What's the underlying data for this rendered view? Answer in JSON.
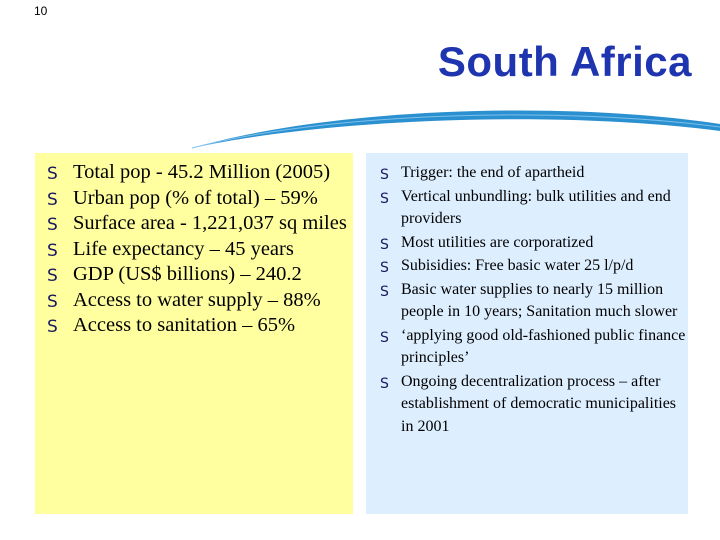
{
  "slide": {
    "number": "10",
    "title": "South Africa"
  },
  "colors": {
    "title": "#1f35b0",
    "swoosh": "#2b90d0",
    "left_panel": "#ffffa0",
    "right_panel": "#ddeeff"
  },
  "bullet_icon": "S-shaped-bullet-icon",
  "left_panel": {
    "bullets": [
      "Total pop - 45.2 Million (2005)",
      "Urban pop (% of total) – 59%",
      "Surface area - 1,221,037 sq miles",
      "Life expectancy – 45 years",
      "GDP (US$ billions) – 240.2",
      "Access to water supply – 88%",
      "Access to sanitation – 65%"
    ]
  },
  "right_panel": {
    "bullets": [
      "Trigger: the end of apartheid",
      "Vertical unbundling: bulk utilities and end providers",
      "Most utilities are corporatized",
      "Subisidies: Free basic water 25 l/p/d",
      "Basic water supplies to nearly 15 million people in 10 years; Sanitation much slower",
      "‘applying good old-fashioned public finance principles’",
      "Ongoing decentralization process – after establishment of democratic municipalities in 2001"
    ]
  }
}
